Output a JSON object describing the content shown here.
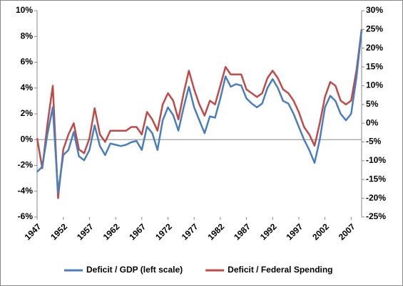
{
  "chart_data": {
    "type": "line",
    "x": [
      1947,
      1948,
      1949,
      1950,
      1951,
      1952,
      1953,
      1954,
      1955,
      1956,
      1957,
      1958,
      1959,
      1960,
      1961,
      1962,
      1963,
      1964,
      1965,
      1966,
      1967,
      1968,
      1969,
      1970,
      1971,
      1972,
      1973,
      1974,
      1975,
      1976,
      1977,
      1978,
      1979,
      1980,
      1981,
      1982,
      1983,
      1984,
      1985,
      1986,
      1987,
      1988,
      1989,
      1990,
      1991,
      1992,
      1993,
      1994,
      1995,
      1996,
      1997,
      1998,
      1999,
      2000,
      2001,
      2002,
      2003,
      2004,
      2005,
      2006,
      2007,
      2008,
      2009
    ],
    "series": [
      {
        "name": "Deficit / GDP (left scale)",
        "color": "#4a7ebb",
        "axis": "y",
        "values": [
          -2.5,
          -2.1,
          0.5,
          2.5,
          -4.1,
          -1.2,
          -0.8,
          0.6,
          -1.3,
          -1.6,
          -0.8,
          1.1,
          -0.5,
          -1.2,
          -0.3,
          -0.4,
          -0.5,
          -0.4,
          -0.2,
          -0.1,
          -0.8,
          1.0,
          0.5,
          -0.8,
          1.5,
          2.5,
          1.9,
          0.7,
          2.5,
          4.1,
          2.5,
          1.5,
          0.5,
          1.8,
          1.7,
          3.2,
          4.9,
          4.1,
          4.3,
          4.2,
          3.2,
          2.8,
          2.5,
          2.8,
          4.0,
          4.7,
          4.0,
          3.0,
          2.8,
          2.0,
          1.0,
          0.0,
          -0.8,
          -1.8,
          0.0,
          2.5,
          3.4,
          3.0,
          2.0,
          1.5,
          2.0,
          4.8,
          8.5
        ]
      },
      {
        "name": "Deficit / Federal Spending",
        "color": "#be4b48",
        "axis": "y2",
        "values": [
          -4,
          -12,
          0,
          10,
          -20,
          -7,
          -3,
          0,
          -7,
          -8,
          -4,
          4,
          -3,
          -5,
          -2,
          -2,
          -2,
          -2,
          -1,
          -1,
          -3,
          3,
          1,
          -2,
          5,
          8,
          6,
          1,
          8,
          14,
          9,
          5,
          2,
          6,
          5,
          10,
          15,
          13,
          13,
          13,
          9,
          8,
          7,
          8,
          12,
          14,
          12,
          9,
          8,
          6,
          3,
          -1,
          -3,
          -6,
          0,
          7,
          11,
          10,
          6,
          5,
          6,
          14,
          25
        ]
      }
    ],
    "xlim": [
      1947,
      2009
    ],
    "xticks": [
      1947,
      1952,
      1957,
      1962,
      1967,
      1972,
      1977,
      1982,
      1987,
      1992,
      1997,
      2002,
      2007
    ],
    "ylim": [
      -6,
      10
    ],
    "yticks": [
      {
        "value": -6,
        "label": "-6%"
      },
      {
        "value": -4,
        "label": "-4%"
      },
      {
        "value": -2,
        "label": "-2%"
      },
      {
        "value": 0,
        "label": "0%"
      },
      {
        "value": 2,
        "label": "2%"
      },
      {
        "value": 4,
        "label": "4%"
      },
      {
        "value": 6,
        "label": "6%"
      },
      {
        "value": 8,
        "label": "8%"
      },
      {
        "value": 10,
        "label": "10%"
      }
    ],
    "y2lim": [
      -25,
      30
    ],
    "y2ticks": [
      {
        "value": -25,
        "label": "-25%"
      },
      {
        "value": -20,
        "label": "-20%"
      },
      {
        "value": -15,
        "label": "-15%"
      },
      {
        "value": -10,
        "label": "-10%"
      },
      {
        "value": -5,
        "label": "-5%"
      },
      {
        "value": 0,
        "label": "0%"
      },
      {
        "value": 5,
        "label": "5%"
      },
      {
        "value": 10,
        "label": "10%"
      },
      {
        "value": 15,
        "label": "15%"
      },
      {
        "value": 20,
        "label": "20%"
      },
      {
        "value": 25,
        "label": "25%"
      },
      {
        "value": 30,
        "label": "30%"
      }
    ],
    "grid": false,
    "legend": "bottom"
  }
}
